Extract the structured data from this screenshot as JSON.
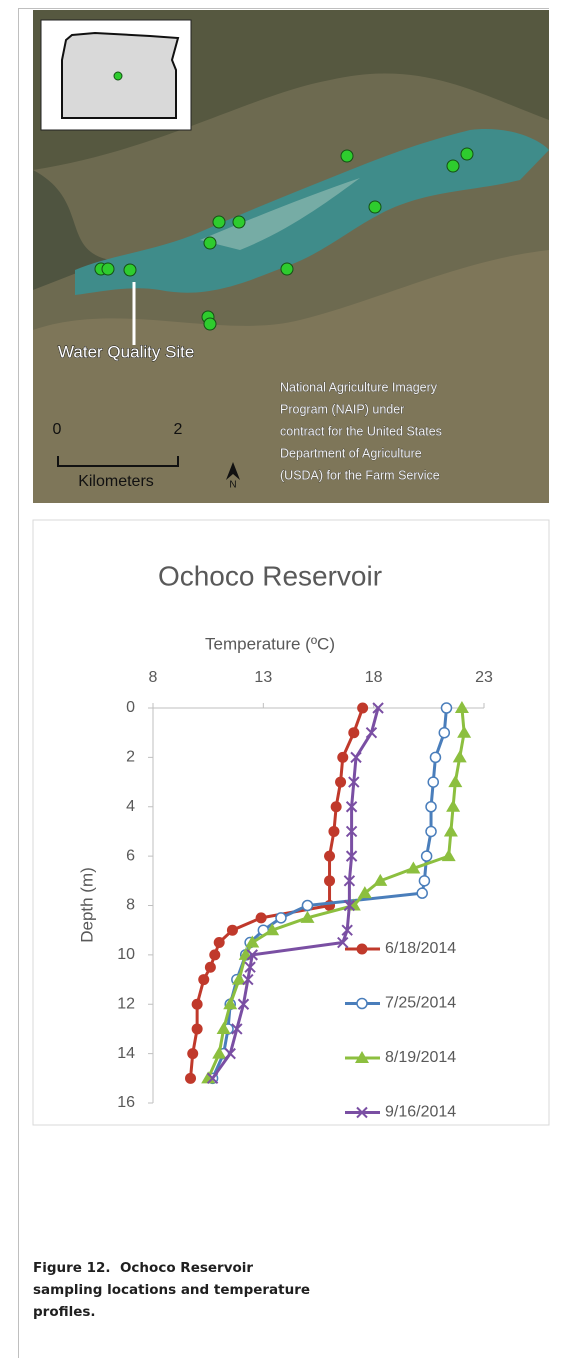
{
  "map": {
    "site_label": "Water Quality Site",
    "credit": [
      "National Agriculture Imagery",
      "Program (NAIP) under",
      "contract for the United States",
      "Department of Agriculture",
      "(USDA) for the Farm Service"
    ],
    "scale_labels": [
      "0",
      "2"
    ],
    "scale_unit": "Kilometers",
    "north": "N"
  },
  "chart_data": {
    "type": "line",
    "title": "Ochoco Reservoir",
    "x_label": "Temperature (ºC)",
    "y_label": "Depth (m)",
    "xlim": [
      8,
      23
    ],
    "xticks": [
      8,
      13,
      18,
      23
    ],
    "ylim": [
      0,
      16
    ],
    "yticks": [
      0,
      2,
      4,
      6,
      8,
      10,
      12,
      14,
      16
    ],
    "y_inverted": true,
    "x_axis_position": "top",
    "legend": "lower right",
    "series": [
      {
        "name": "6/18/2014",
        "color": "#c0392b",
        "marker": "circle",
        "x": [
          17.5,
          17.1,
          16.6,
          16.5,
          16.3,
          16.2,
          16.0,
          16.0,
          16.0,
          12.9,
          11.6,
          11.0,
          10.8,
          10.6,
          10.3,
          10.0,
          10.0,
          9.8,
          9.7
        ],
        "y": [
          0,
          1,
          2,
          3,
          4,
          5,
          6,
          7,
          8,
          8.5,
          9,
          9.5,
          10,
          10.5,
          11,
          12,
          13,
          14,
          15
        ]
      },
      {
        "name": "7/25/2014",
        "color": "#4a7ebb",
        "marker": "open-circle",
        "x": [
          21.3,
          21.2,
          20.8,
          20.7,
          20.6,
          20.6,
          20.4,
          20.3,
          20.2,
          15.0,
          13.8,
          13.0,
          12.4,
          12.2,
          11.8,
          11.5,
          11.4,
          11.2,
          10.7
        ],
        "y": [
          0,
          1,
          2,
          3,
          4,
          5,
          6,
          7,
          7.5,
          8,
          8.5,
          9,
          9.5,
          10,
          11,
          12,
          13,
          14,
          15
        ]
      },
      {
        "name": "8/19/2014",
        "color": "#8cbf3f",
        "marker": "triangle",
        "x": [
          22.0,
          22.1,
          21.9,
          21.7,
          21.6,
          21.5,
          21.4,
          19.8,
          18.3,
          17.6,
          17.1,
          15.0,
          13.4,
          12.5,
          12.2,
          11.9,
          11.5,
          11.2,
          11.0,
          10.5
        ],
        "y": [
          0,
          1,
          2,
          3,
          4,
          5,
          6,
          6.5,
          7,
          7.5,
          8,
          8.5,
          9,
          9.5,
          10,
          11,
          12,
          13,
          14,
          15
        ]
      },
      {
        "name": "9/16/2014",
        "color": "#7a4fa3",
        "marker": "x",
        "x": [
          18.2,
          17.9,
          17.2,
          17.1,
          17.0,
          17.0,
          17.0,
          16.9,
          16.9,
          16.8,
          16.6,
          12.5,
          12.4,
          12.3,
          12.1,
          11.8,
          11.5,
          10.7
        ],
        "y": [
          0,
          1,
          2,
          3,
          4,
          5,
          6,
          7,
          8,
          9,
          9.5,
          10,
          10.5,
          11,
          12,
          13,
          14,
          15
        ]
      }
    ]
  },
  "caption": "Figure 12.  Ochoco Reservoir sampling locations and temperature profiles."
}
